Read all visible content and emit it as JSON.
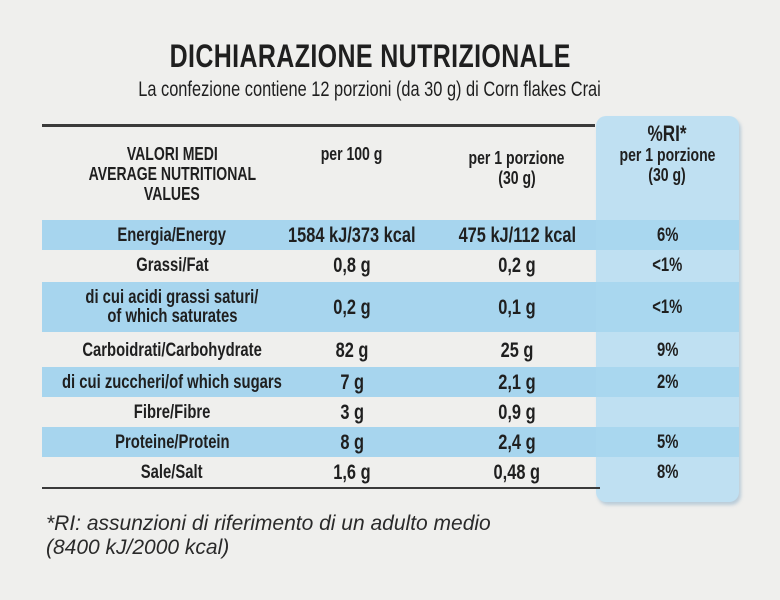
{
  "title": "DICHIARAZIONE NUTRIZIONALE",
  "subtitle": "La confezione contiene 12 porzioni (da 30 g) di Corn flakes Crai",
  "header": {
    "label_line1": "VALORI MEDI",
    "label_line2": "AVERAGE NUTRITIONAL",
    "label_line3": "VALUES",
    "per100": "per 100 g",
    "portion_line1": "per 1 porzione",
    "portion_line2": "(30 g)",
    "ri_line1": "%RI*",
    "ri_line2": "per 1 porzione",
    "ri_line3": "(30 g)"
  },
  "rows": [
    {
      "label": "Energia/Energy",
      "per100": "1584 kJ/373 kcal",
      "portion": "475 kJ/112 kcal",
      "ri": "6%"
    },
    {
      "label": "Grassi/Fat",
      "per100": "0,8 g",
      "portion": "0,2 g",
      "ri": "<1%"
    },
    {
      "label": "di cui acidi grassi saturi/",
      "label2": "of which saturates",
      "per100": "0,2 g",
      "portion": "0,1 g",
      "ri": "<1%"
    },
    {
      "label": "Carboidrati/Carbohydrate",
      "per100": "82 g",
      "portion": "25 g",
      "ri": "9%"
    },
    {
      "label": "di cui zuccheri/of which sugars",
      "per100": "7 g",
      "portion": "2,1 g",
      "ri": "2%"
    },
    {
      "label": "Fibre/Fibre",
      "per100": "3 g",
      "portion": "0,9 g",
      "ri": ""
    },
    {
      "label": "Proteine/Protein",
      "per100": "8 g",
      "portion": "2,4 g",
      "ri": "5%"
    },
    {
      "label": "Sale/Salt",
      "per100": "1,6 g",
      "portion": "0,48 g",
      "ri": "8%"
    }
  ],
  "footnote_line1": "*RI: assunzioni di riferimento di un adulto medio",
  "footnote_line2": "(8400 kJ/2000 kcal)"
}
